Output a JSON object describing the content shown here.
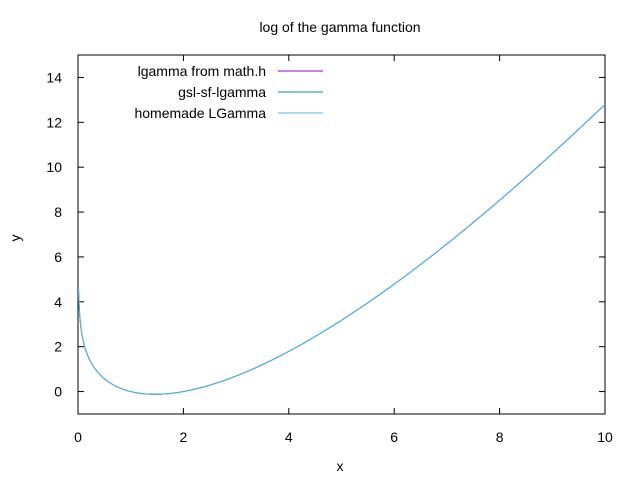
{
  "chart_data": {
    "type": "line",
    "title": "log of the gamma function",
    "xlabel": "x",
    "ylabel": "y",
    "xlim": [
      0,
      10
    ],
    "ylim": [
      -1,
      15
    ],
    "xticks": [
      0,
      2,
      4,
      6,
      8,
      10
    ],
    "yticks": [
      0,
      2,
      4,
      6,
      8,
      10,
      12,
      14
    ],
    "grid": false,
    "legend_position": "top-left",
    "series": [
      {
        "name": "lgamma from math.h",
        "color": "#9400d3",
        "function": "lgamma"
      },
      {
        "name": "gsl-sf-lgamma",
        "color": "#009e73",
        "function": "lgamma"
      },
      {
        "name": "homemade LGamma",
        "color": "#56b4e9",
        "function": "lgamma"
      }
    ]
  }
}
